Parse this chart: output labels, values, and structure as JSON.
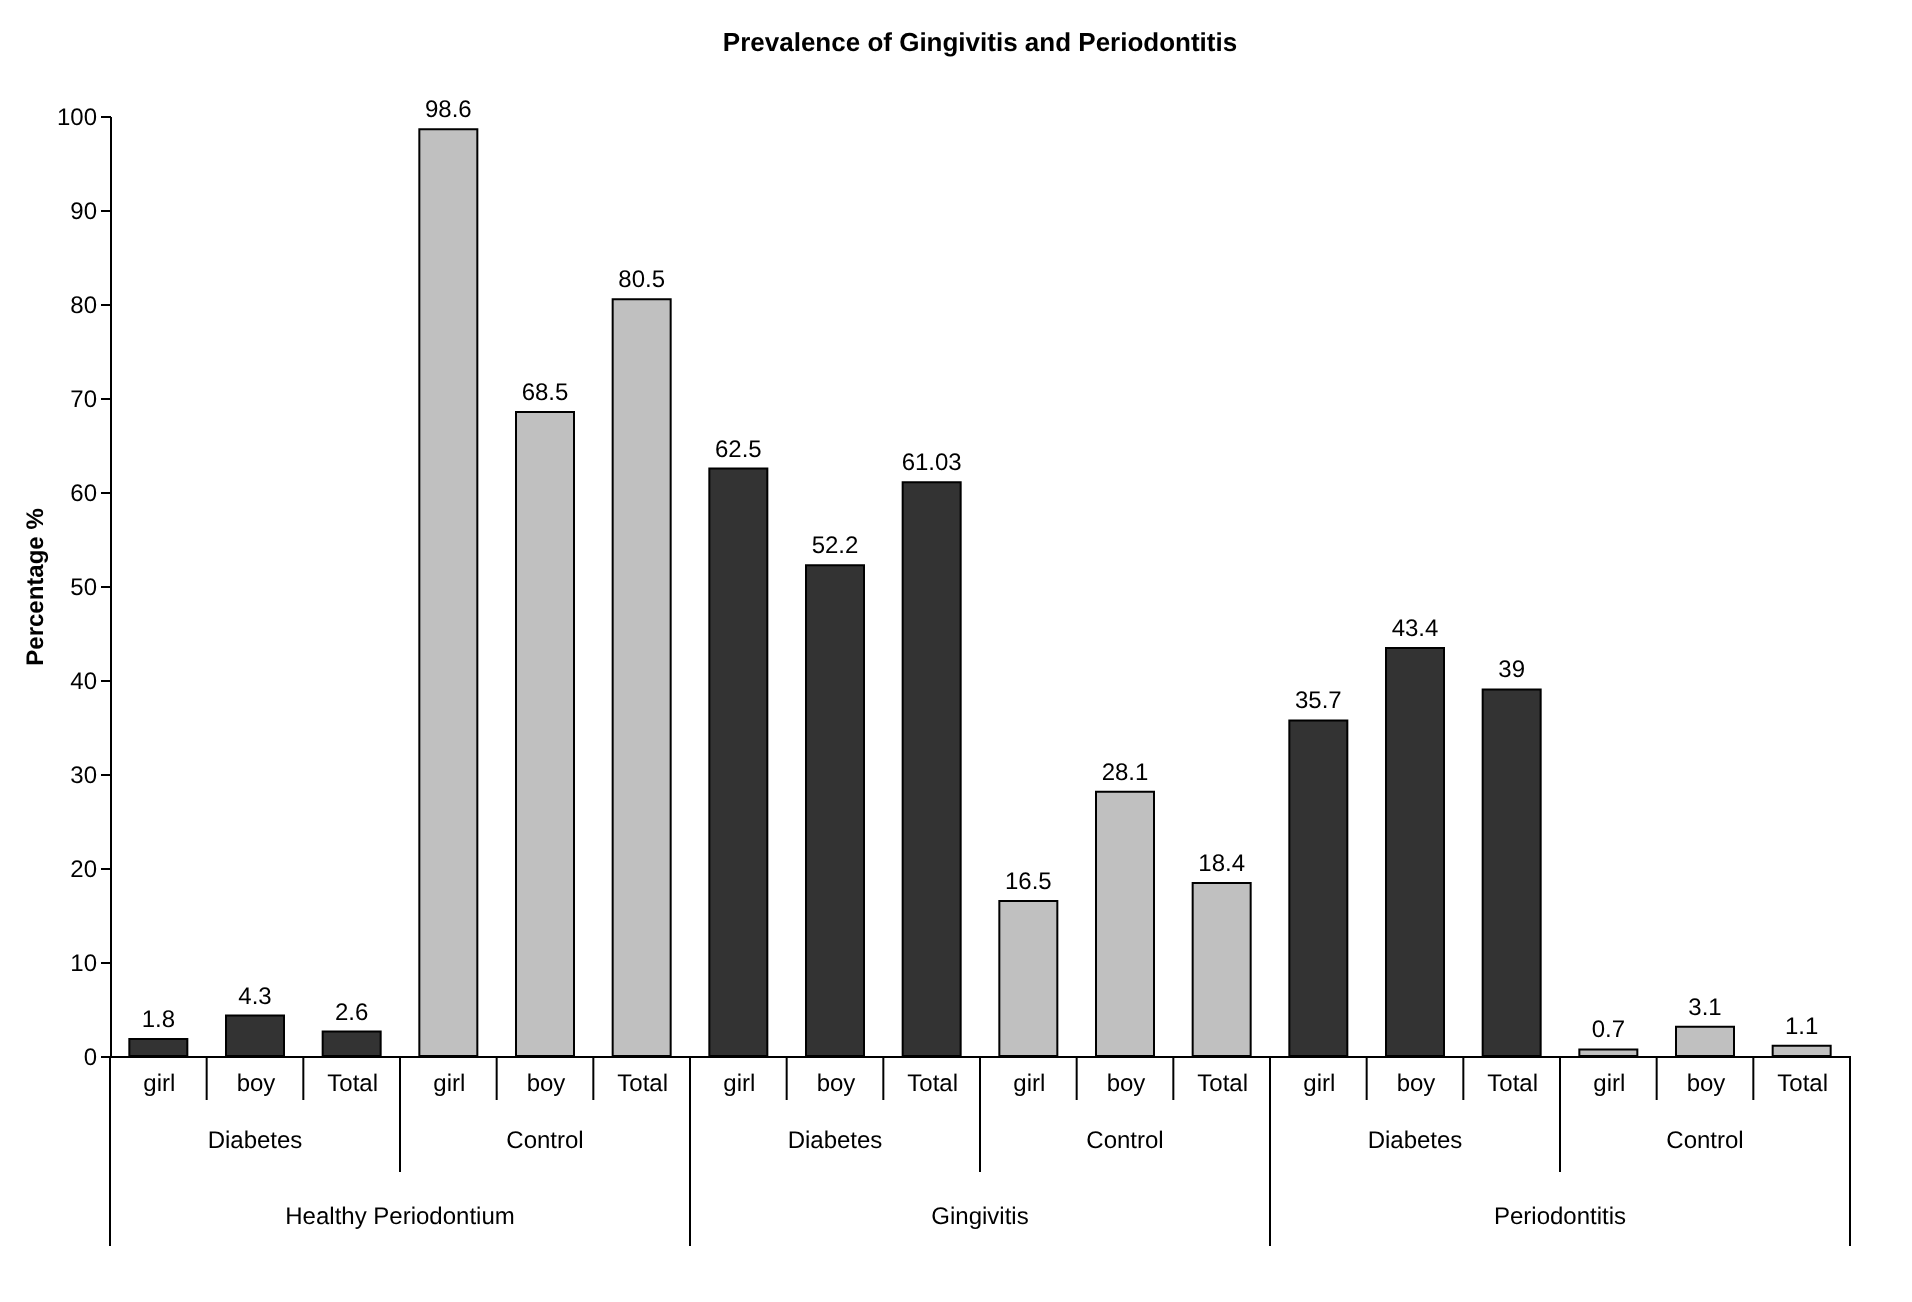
{
  "chart_data": {
    "type": "bar",
    "title": "Prevalence of Gingivitis and Periodontitis",
    "ylabel": "Percentage %",
    "categories": [
      "girl",
      "boy",
      "Total",
      "girl",
      "boy",
      "Total",
      "girl",
      "boy",
      "Total",
      "girl",
      "boy",
      "Total",
      "girl",
      "boy",
      "Total",
      "girl",
      "boy",
      "Total"
    ],
    "values": [
      1.8,
      4.3,
      2.6,
      98.6,
      68.5,
      80.5,
      62.5,
      52.2,
      61.03,
      16.5,
      28.1,
      18.4,
      35.7,
      43.4,
      39,
      0.7,
      3.1,
      1.1
    ],
    "colors": [
      "#333333",
      "#333333",
      "#333333",
      "#c0c0c0",
      "#c0c0c0",
      "#c0c0c0",
      "#333333",
      "#333333",
      "#333333",
      "#c0c0c0",
      "#c0c0c0",
      "#c0c0c0",
      "#333333",
      "#333333",
      "#333333",
      "#c0c0c0",
      "#c0c0c0",
      "#c0c0c0"
    ],
    "annotations": [
      "Diabetes",
      "Control",
      "Diabetes",
      "Control",
      "Diabetes",
      "Control",
      "Healthy Periodontium",
      "Gingivitis",
      "Periodontitis"
    ],
    "ylim": [
      0,
      100
    ],
    "yticks": [
      0,
      10,
      20,
      30,
      40,
      50,
      60,
      70,
      80,
      90,
      100
    ],
    "grid": false,
    "data_labels": true
  }
}
